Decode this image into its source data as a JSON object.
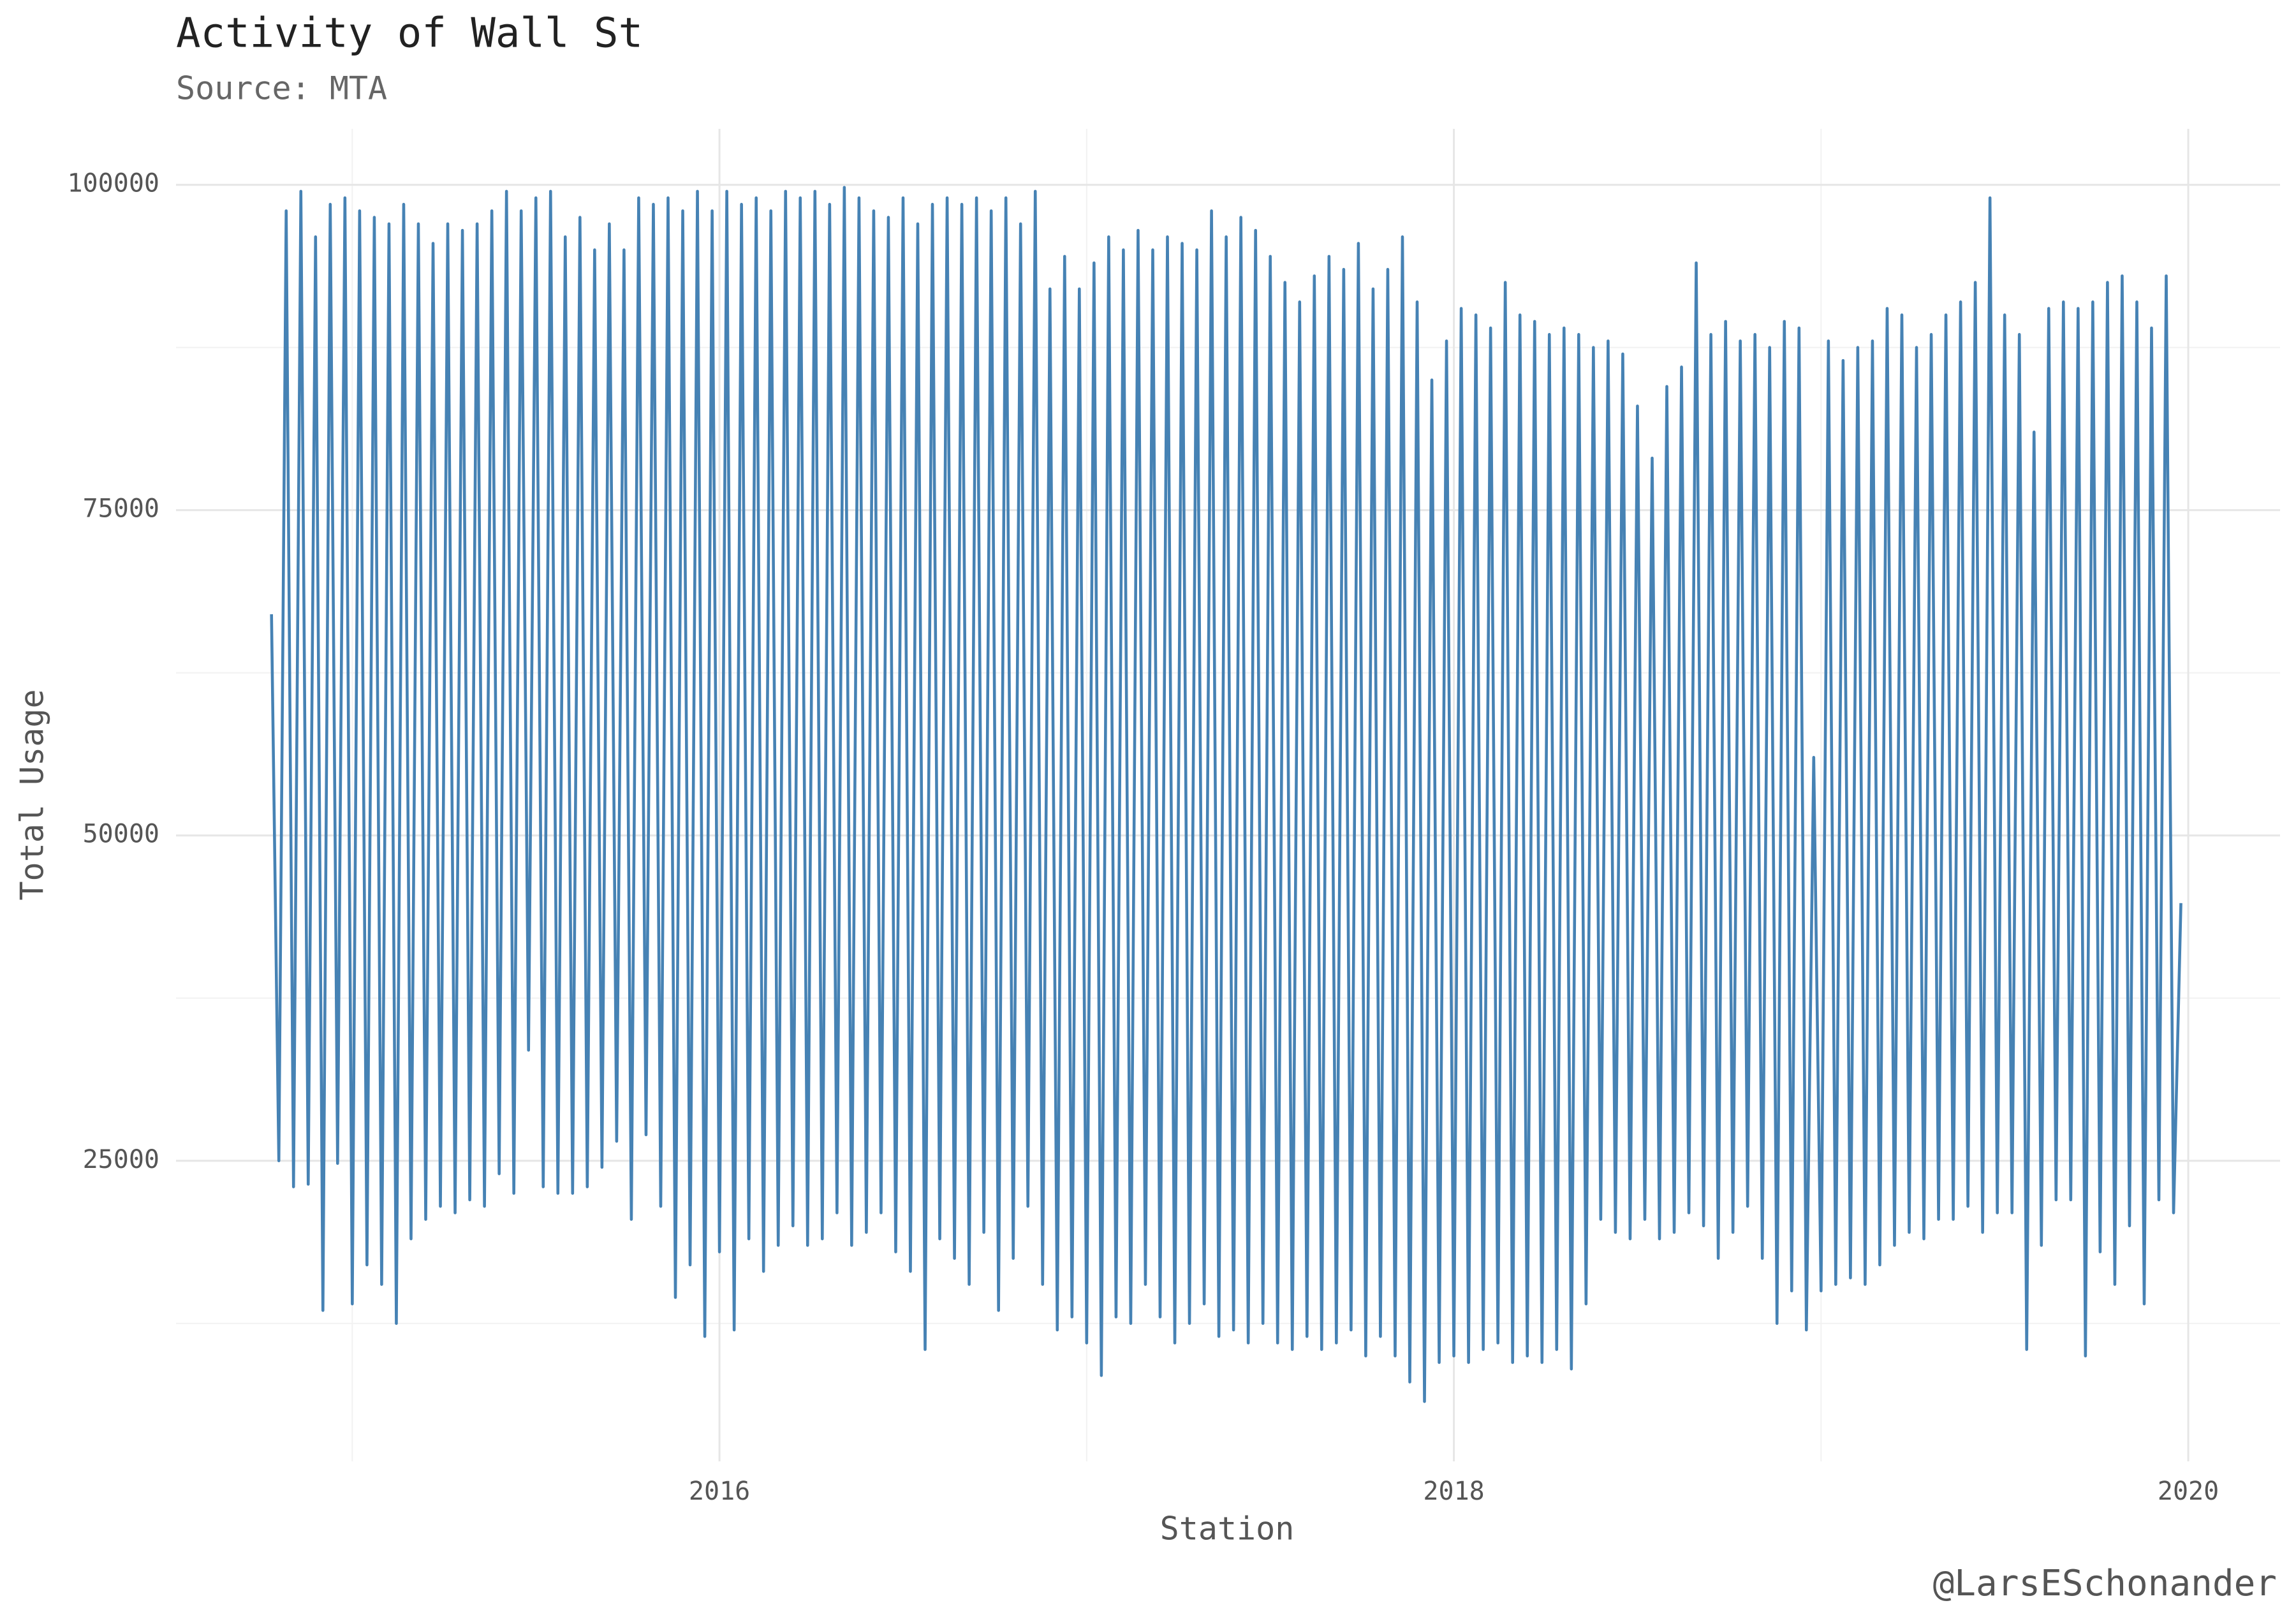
{
  "chart_data": {
    "type": "line",
    "title": "Activity of Wall St",
    "subtitle": "Source: MTA",
    "x_label": "Station",
    "y_label": "Total Usage",
    "caption": "@LarsESchonander",
    "xlim": [
      2014.52,
      2020.25
    ],
    "ylim": [
      1900,
      104300
    ],
    "xticks": [
      2016,
      2018,
      2020
    ],
    "yticks": [
      25000,
      50000,
      75000,
      100000
    ],
    "x_minor_ticks": [
      2015,
      2017,
      2019
    ],
    "y_minor_ticks": [
      12500,
      37500,
      62500,
      87500
    ],
    "grid": true,
    "x": [
      2014.78,
      2014.8,
      2014.82,
      2014.84,
      2014.86,
      2014.88,
      2014.9,
      2014.92,
      2014.94,
      2014.96,
      2014.98,
      2015.0,
      2015.02,
      2015.04,
      2015.06,
      2015.08,
      2015.1,
      2015.12,
      2015.14,
      2015.16,
      2015.18,
      2015.2,
      2015.22,
      2015.24,
      2015.26,
      2015.28,
      2015.3,
      2015.32,
      2015.34,
      2015.36,
      2015.38,
      2015.4,
      2015.42,
      2015.44,
      2015.46,
      2015.48,
      2015.5,
      2015.52,
      2015.54,
      2015.56,
      2015.58,
      2015.6,
      2015.62,
      2015.64,
      2015.66,
      2015.68,
      2015.7,
      2015.72,
      2015.74,
      2015.76,
      2015.78,
      2015.8,
      2015.82,
      2015.84,
      2015.86,
      2015.88,
      2015.9,
      2015.92,
      2015.94,
      2015.96,
      2015.98,
      2016.0,
      2016.02,
      2016.04,
      2016.06,
      2016.08,
      2016.1,
      2016.12,
      2016.14,
      2016.16,
      2016.18,
      2016.2,
      2016.22,
      2016.24,
      2016.26,
      2016.28,
      2016.3,
      2016.32,
      2016.34,
      2016.36,
      2016.38,
      2016.4,
      2016.42,
      2016.44,
      2016.46,
      2016.48,
      2016.5,
      2016.52,
      2016.54,
      2016.56,
      2016.58,
      2016.6,
      2016.62,
      2016.64,
      2016.66,
      2016.68,
      2016.7,
      2016.72,
      2016.74,
      2016.76,
      2016.78,
      2016.8,
      2016.82,
      2016.84,
      2016.86,
      2016.88,
      2016.9,
      2016.92,
      2016.94,
      2016.96,
      2016.98,
      2017.0,
      2017.02,
      2017.04,
      2017.06,
      2017.08,
      2017.1,
      2017.12,
      2017.14,
      2017.16,
      2017.18,
      2017.2,
      2017.22,
      2017.24,
      2017.26,
      2017.28,
      2017.3,
      2017.32,
      2017.34,
      2017.36,
      2017.38,
      2017.4,
      2017.42,
      2017.44,
      2017.46,
      2017.48,
      2017.5,
      2017.52,
      2017.54,
      2017.56,
      2017.58,
      2017.6,
      2017.62,
      2017.64,
      2017.66,
      2017.68,
      2017.7,
      2017.72,
      2017.74,
      2017.76,
      2017.78,
      2017.8,
      2017.82,
      2017.84,
      2017.86,
      2017.88,
      2017.9,
      2017.92,
      2017.94,
      2017.96,
      2017.98,
      2018.0,
      2018.02,
      2018.04,
      2018.06,
      2018.08,
      2018.1,
      2018.12,
      2018.14,
      2018.16,
      2018.18,
      2018.2,
      2018.22,
      2018.24,
      2018.26,
      2018.28,
      2018.3,
      2018.32,
      2018.34,
      2018.36,
      2018.38,
      2018.4,
      2018.42,
      2018.44,
      2018.46,
      2018.48,
      2018.5,
      2018.52,
      2018.54,
      2018.56,
      2018.58,
      2018.6,
      2018.62,
      2018.64,
      2018.66,
      2018.68,
      2018.7,
      2018.72,
      2018.74,
      2018.76,
      2018.78,
      2018.8,
      2018.82,
      2018.84,
      2018.86,
      2018.88,
      2018.9,
      2018.92,
      2018.94,
      2018.96,
      2018.98,
      2019.0,
      2019.02,
      2019.04,
      2019.06,
      2019.08,
      2019.1,
      2019.12,
      2019.14,
      2019.16,
      2019.18,
      2019.2,
      2019.22,
      2019.24,
      2019.26,
      2019.28,
      2019.3,
      2019.32,
      2019.34,
      2019.36,
      2019.38,
      2019.4,
      2019.42,
      2019.44,
      2019.46,
      2019.48,
      2019.5,
      2019.52,
      2019.54,
      2019.56,
      2019.58,
      2019.6,
      2019.62,
      2019.64,
      2019.66,
      2019.68,
      2019.7,
      2019.72,
      2019.74,
      2019.76,
      2019.78,
      2019.8,
      2019.82,
      2019.84,
      2019.86,
      2019.88,
      2019.9,
      2019.92,
      2019.94,
      2019.96,
      2019.98
    ],
    "series": [
      {
        "name": "Total Usage",
        "color": "#4682b4",
        "values": [
          67000,
          25000,
          98000,
          23000,
          99500,
          23200,
          96000,
          13500,
          98500,
          24800,
          99000,
          14000,
          98000,
          17000,
          97500,
          15500,
          97000,
          12500,
          98500,
          19000,
          97000,
          20500,
          95500,
          21500,
          97000,
          21000,
          96500,
          22000,
          97000,
          21500,
          98000,
          24000,
          99500,
          22500,
          98000,
          33500,
          99000,
          23000,
          99500,
          22500,
          96000,
          22500,
          97500,
          23000,
          95000,
          24500,
          97000,
          26500,
          95000,
          20500,
          99000,
          27000,
          98500,
          21500,
          99000,
          14500,
          98000,
          17000,
          99500,
          11500,
          98000,
          18000,
          99500,
          12000,
          98500,
          19000,
          99000,
          16500,
          98000,
          18500,
          99500,
          20000,
          99000,
          18500,
          99500,
          19000,
          98500,
          21000,
          99800,
          18500,
          99000,
          19500,
          98000,
          21000,
          97500,
          18000,
          99000,
          16500,
          97000,
          10500,
          98500,
          19000,
          99000,
          17500,
          98500,
          15500,
          99000,
          19500,
          98000,
          13500,
          99000,
          17500,
          97000,
          21500,
          99500,
          15500,
          92000,
          12000,
          94500,
          13000,
          92000,
          11000,
          94000,
          8500,
          96000,
          13000,
          95000,
          12500,
          96500,
          15500,
          95000,
          13000,
          96000,
          11000,
          95500,
          12500,
          95000,
          14000,
          98000,
          11500,
          96000,
          12000,
          97500,
          11000,
          96500,
          12500,
          94500,
          11000,
          92500,
          10500,
          91000,
          11500,
          93000,
          10500,
          94500,
          11000,
          93500,
          12000,
          95500,
          10000,
          92000,
          11500,
          93500,
          10000,
          96000,
          8000,
          91000,
          6500,
          85000,
          9500,
          88000,
          10000,
          90500,
          9500,
          90000,
          10500,
          89000,
          11000,
          92500,
          9500,
          90000,
          10000,
          89500,
          9500,
          88500,
          10500,
          89000,
          9000,
          88500,
          14000,
          87500,
          20500,
          88000,
          19500,
          87000,
          19000,
          83000,
          20500,
          79000,
          19000,
          84500,
          19500,
          86000,
          21000,
          94000,
          20000,
          88500,
          17500,
          89500,
          19500,
          88000,
          21500,
          88500,
          17500,
          87500,
          12500,
          89500,
          15000,
          89000,
          12000,
          56000,
          15000,
          88000,
          15500,
          86500,
          16000,
          87500,
          15500,
          88000,
          17000,
          90500,
          18500,
          90000,
          19500,
          87500,
          19000,
          88500,
          20500,
          90000,
          20500,
          91000,
          21500,
          92500,
          19500,
          99000,
          21000,
          90000,
          21000,
          88500,
          10500,
          81000,
          18500,
          90500,
          22000,
          91000,
          22000,
          90500,
          10000,
          91000,
          18000,
          92500,
          15500,
          93000,
          20000,
          91000,
          14000,
          89000,
          22000,
          93000,
          21000,
          44800
        ]
      }
    ]
  }
}
